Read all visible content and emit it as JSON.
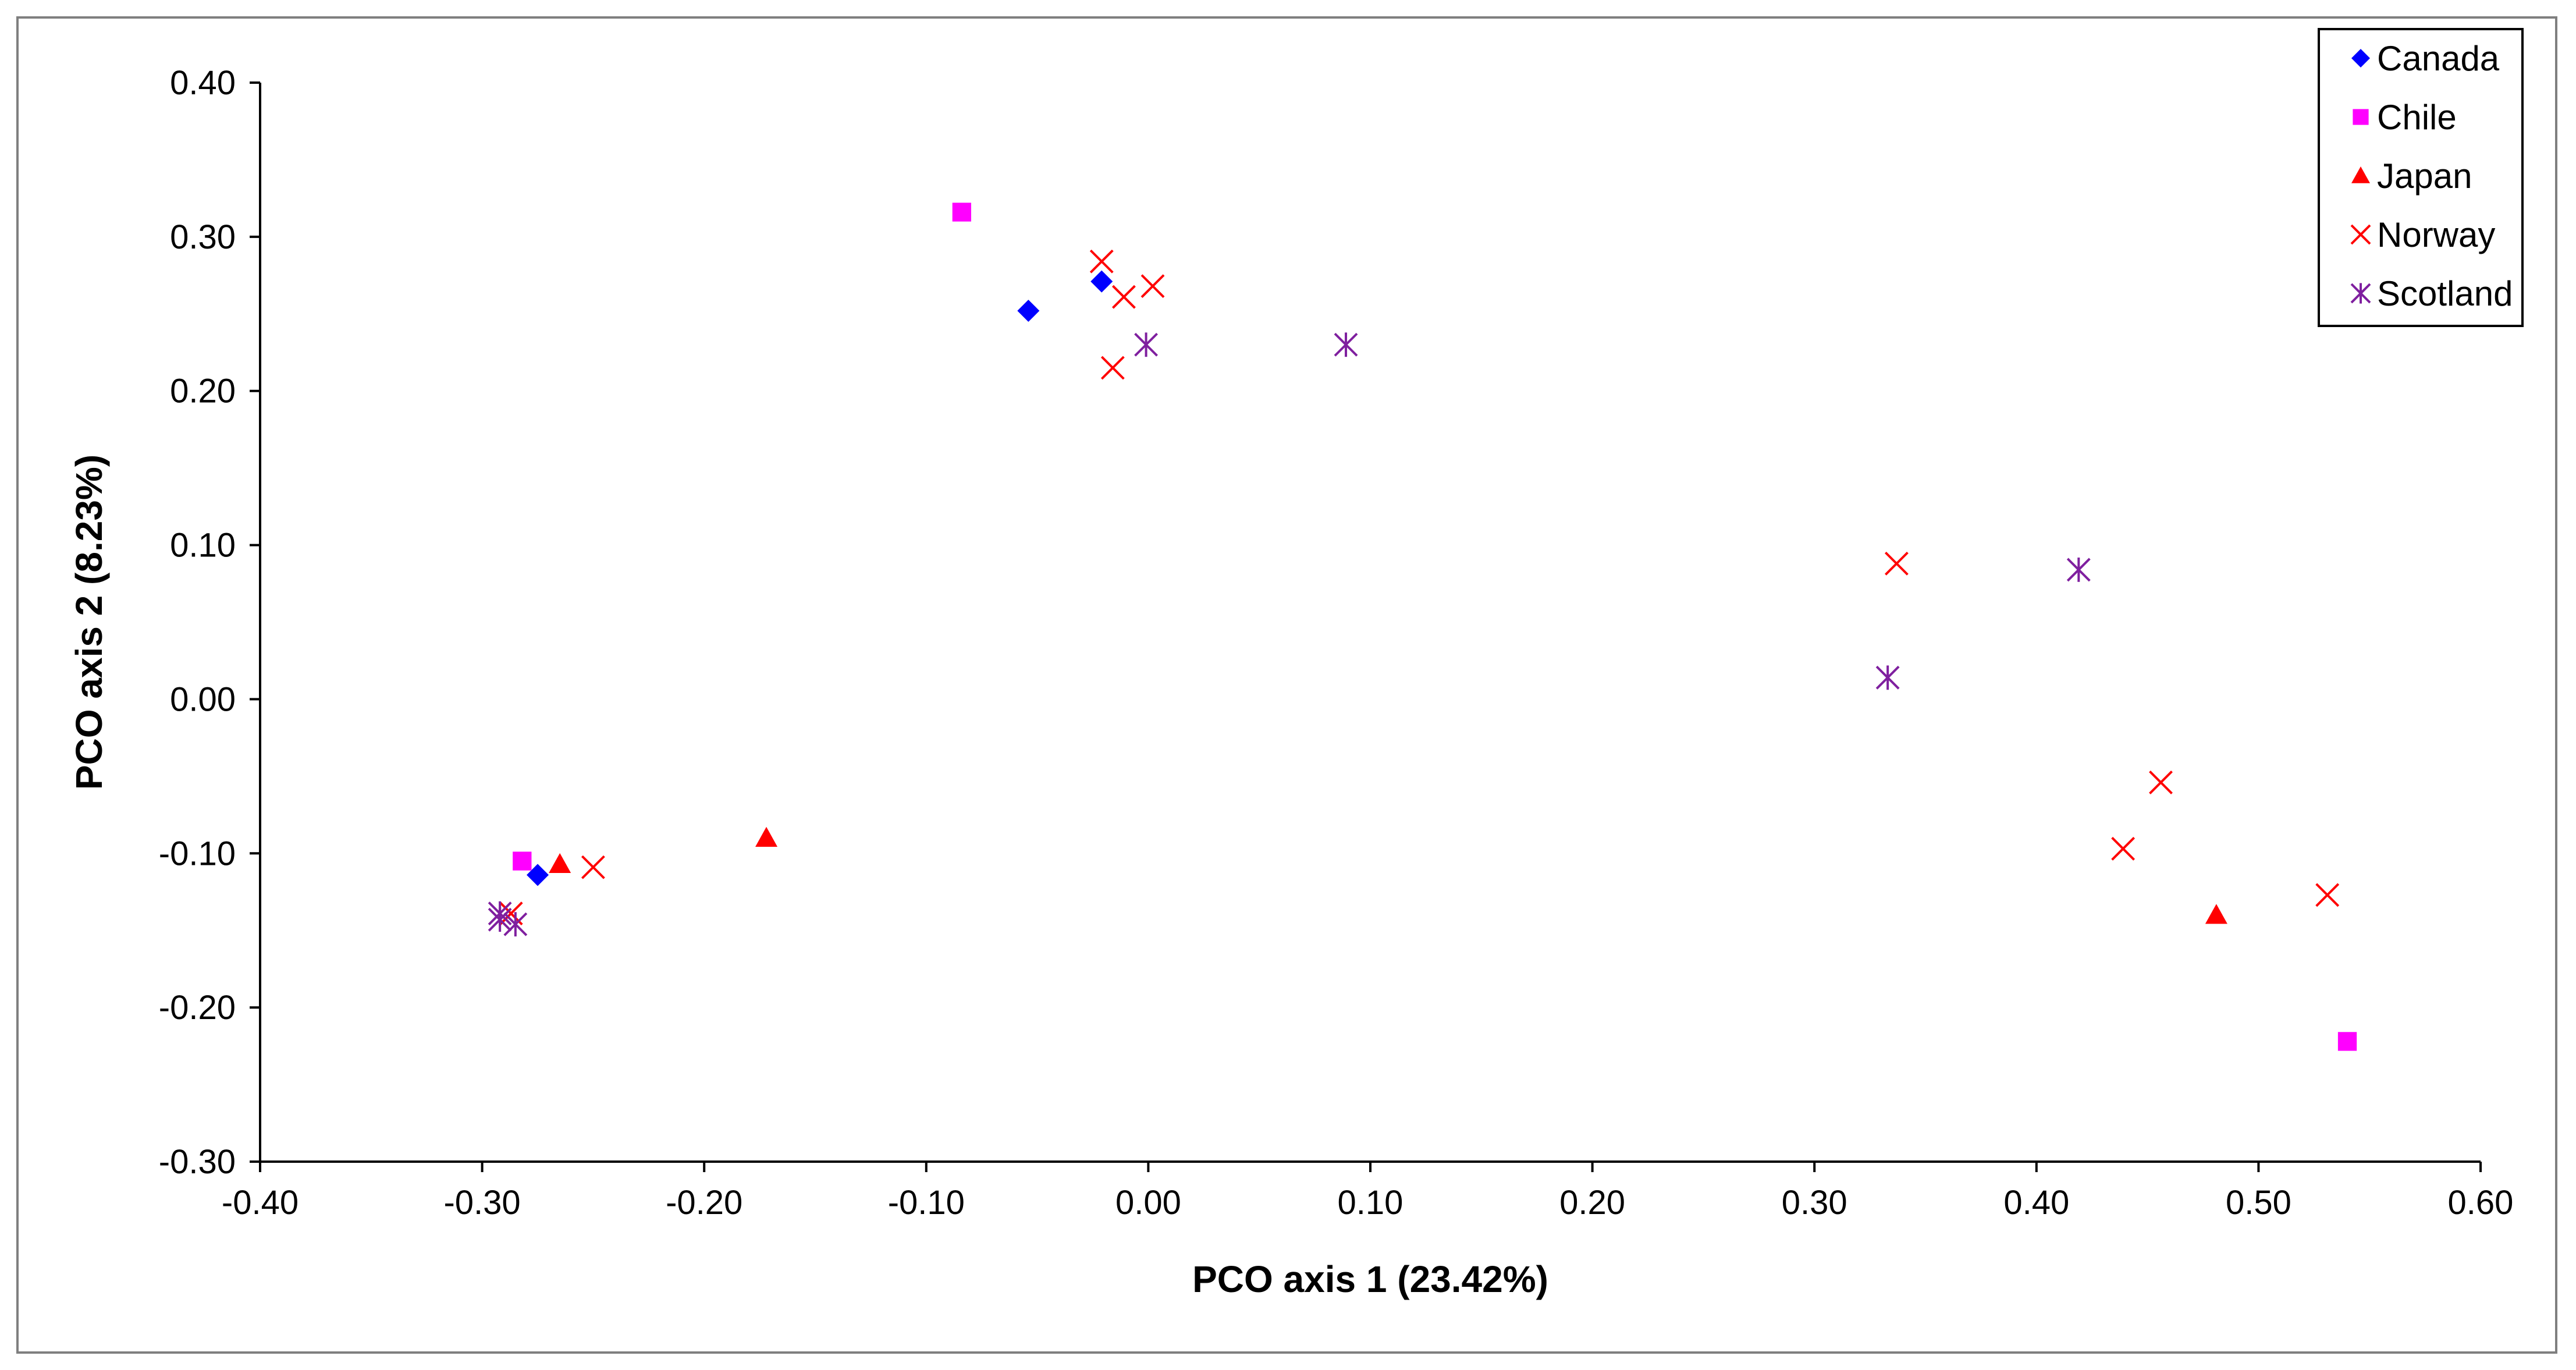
{
  "chart_data": {
    "type": "scatter",
    "title": "",
    "xlabel": "PCO axis 1 (23.42%)",
    "ylabel": "PCO axis 2 (8.23%)",
    "xlim": [
      -0.4,
      0.6
    ],
    "ylim": [
      -0.3,
      0.4
    ],
    "x_ticks": [
      "-0.40",
      "-0.30",
      "-0.20",
      "-0.10",
      "0.00",
      "0.10",
      "0.20",
      "0.30",
      "0.40",
      "0.50",
      "0.60"
    ],
    "y_ticks": [
      "0.40",
      "0.30",
      "0.20",
      "0.10",
      "0.00",
      "-0.10",
      "-0.20",
      "-0.30"
    ],
    "grid": false,
    "legend_position": "top-right",
    "series": [
      {
        "name": "Canada",
        "marker": "diamond",
        "color": "#0000ff",
        "points": [
          [
            -0.054,
            0.252
          ],
          [
            -0.021,
            0.271
          ],
          [
            -0.275,
            -0.114
          ]
        ]
      },
      {
        "name": "Chile",
        "marker": "square",
        "color": "#ff00ff",
        "points": [
          [
            -0.084,
            0.316
          ],
          [
            -0.282,
            -0.105
          ],
          [
            0.54,
            -0.222
          ]
        ]
      },
      {
        "name": "Japan",
        "marker": "triangle",
        "color": "#ff0000",
        "points": [
          [
            -0.265,
            -0.107
          ],
          [
            -0.172,
            -0.09
          ],
          [
            0.481,
            -0.14
          ]
        ]
      },
      {
        "name": "Norway",
        "marker": "x",
        "color": "#ff0000",
        "points": [
          [
            -0.021,
            0.284
          ],
          [
            -0.011,
            0.261
          ],
          [
            0.002,
            0.268
          ],
          [
            -0.016,
            0.215
          ],
          [
            -0.25,
            -0.109
          ],
          [
            -0.287,
            -0.139
          ],
          [
            0.337,
            0.088
          ],
          [
            0.456,
            -0.054
          ],
          [
            0.439,
            -0.097
          ],
          [
            0.531,
            -0.127
          ]
        ]
      },
      {
        "name": "Scotland",
        "marker": "star",
        "color": "#7f1f9f",
        "points": [
          [
            -0.001,
            0.23
          ],
          [
            0.089,
            0.23
          ],
          [
            -0.292,
            -0.139
          ],
          [
            -0.292,
            -0.143
          ],
          [
            -0.285,
            -0.146
          ],
          [
            0.333,
            0.014
          ],
          [
            0.419,
            0.084
          ]
        ]
      }
    ]
  }
}
